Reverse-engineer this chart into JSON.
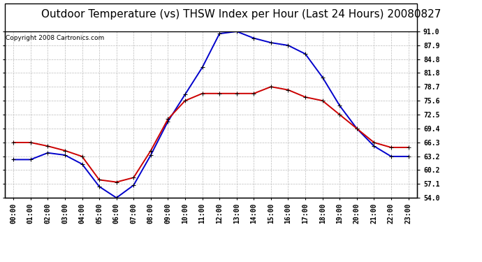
{
  "title": "Outdoor Temperature (vs) THSW Index per Hour (Last 24 Hours) 20080827",
  "copyright": "Copyright 2008 Cartronics.com",
  "hours": [
    "00:00",
    "01:00",
    "02:00",
    "03:00",
    "04:00",
    "05:00",
    "06:00",
    "07:00",
    "08:00",
    "09:00",
    "10:00",
    "11:00",
    "12:00",
    "13:00",
    "14:00",
    "15:00",
    "16:00",
    "17:00",
    "18:00",
    "19:00",
    "20:00",
    "21:00",
    "22:00",
    "23:00"
  ],
  "temp": [
    66.3,
    66.3,
    65.5,
    64.5,
    63.2,
    58.0,
    57.5,
    58.5,
    64.5,
    71.5,
    75.6,
    77.2,
    77.2,
    77.2,
    77.2,
    78.7,
    78.0,
    76.4,
    75.6,
    72.5,
    69.4,
    66.3,
    65.2,
    65.2
  ],
  "thsw": [
    62.5,
    62.5,
    64.0,
    63.5,
    61.5,
    56.5,
    54.0,
    56.8,
    63.5,
    71.0,
    77.0,
    83.0,
    90.5,
    91.0,
    89.5,
    88.5,
    87.9,
    86.0,
    80.8,
    74.5,
    69.4,
    65.5,
    63.2,
    63.2
  ],
  "temp_color": "#cc0000",
  "thsw_color": "#0000cc",
  "bg_color": "#ffffff",
  "grid_color": "#bbbbbb",
  "ylim": [
    54.0,
    91.0
  ],
  "yticks": [
    54.0,
    57.1,
    60.2,
    63.2,
    66.3,
    69.4,
    72.5,
    75.6,
    78.7,
    81.8,
    84.8,
    87.9,
    91.0
  ],
  "title_fontsize": 11,
  "copyright_fontsize": 6.5,
  "tick_fontsize": 7,
  "marker": "+",
  "marker_size": 5,
  "line_width": 1.4
}
